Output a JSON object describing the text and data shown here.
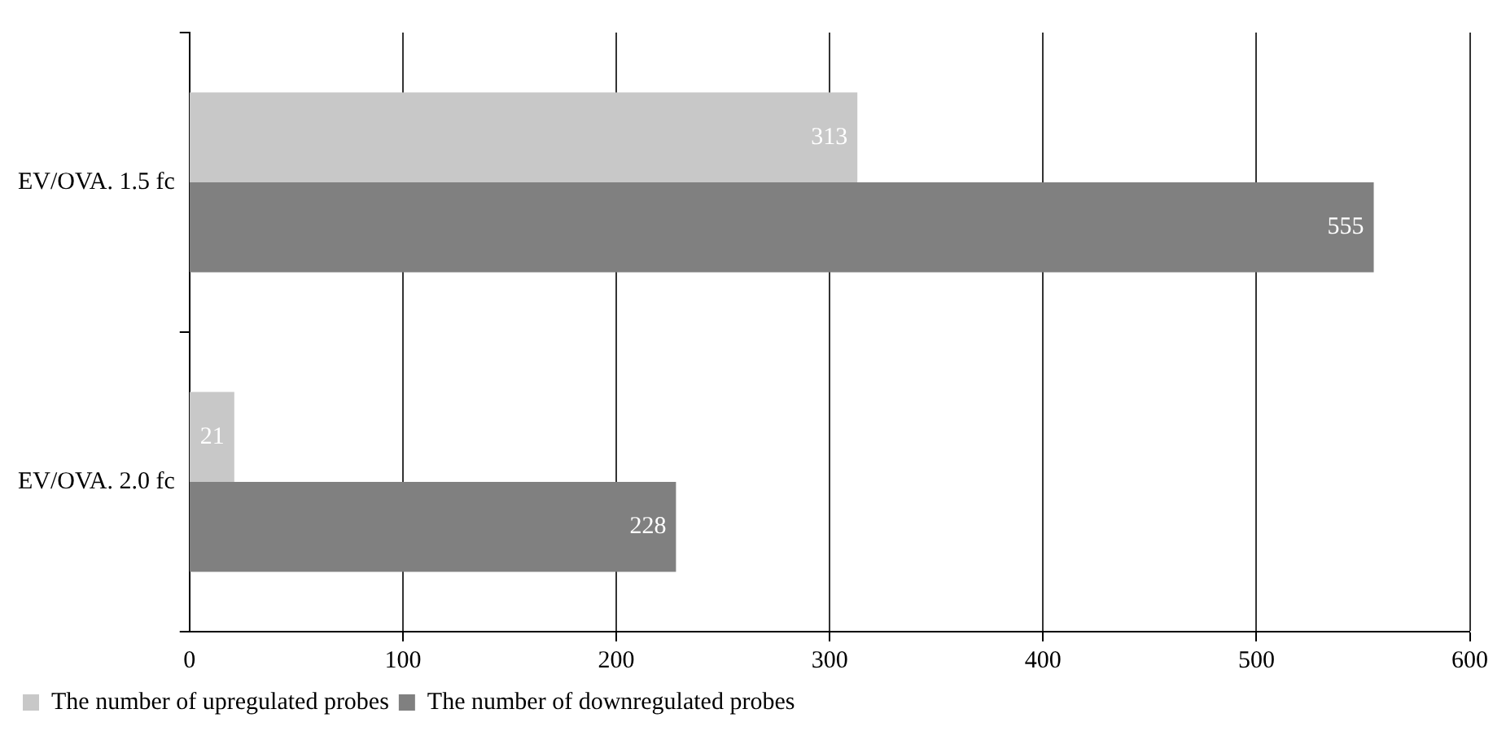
{
  "chart_data": {
    "type": "bar",
    "orientation": "horizontal",
    "categories": [
      "EV/OVA. 1.5 fc",
      "EV/OVA. 2.0 fc"
    ],
    "series": [
      {
        "name": "The number of upregulated probes",
        "color": "#c8c8c8",
        "values": [
          313,
          21
        ]
      },
      {
        "name": "The number of downregulated probes",
        "color": "#808080",
        "values": [
          555,
          228
        ]
      }
    ],
    "xlim": [
      0,
      600
    ],
    "xticks": [
      0,
      100,
      200,
      300,
      400,
      500,
      600
    ],
    "grid": "x",
    "legend": "bottom left",
    "data_labels": true
  }
}
